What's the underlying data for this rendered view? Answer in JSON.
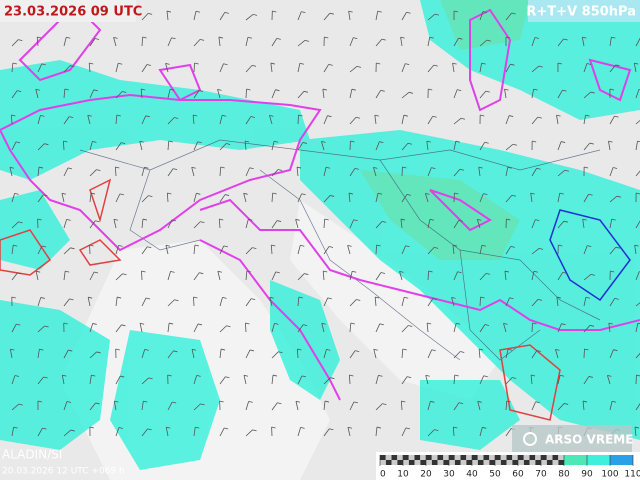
{
  "header": {
    "datetime": "23.03.2026 09 UTC",
    "product": "R+T+V 850hPa"
  },
  "footer": {
    "model": "ALADIN/SI",
    "run": "20.03.2026 12 UTC +069 h"
  },
  "logo": {
    "text": "ARSO VREME"
  },
  "legend": {
    "ticks": [
      0,
      10,
      20,
      30,
      40,
      50,
      60,
      70,
      80,
      90,
      100,
      110
    ]
  }
}
